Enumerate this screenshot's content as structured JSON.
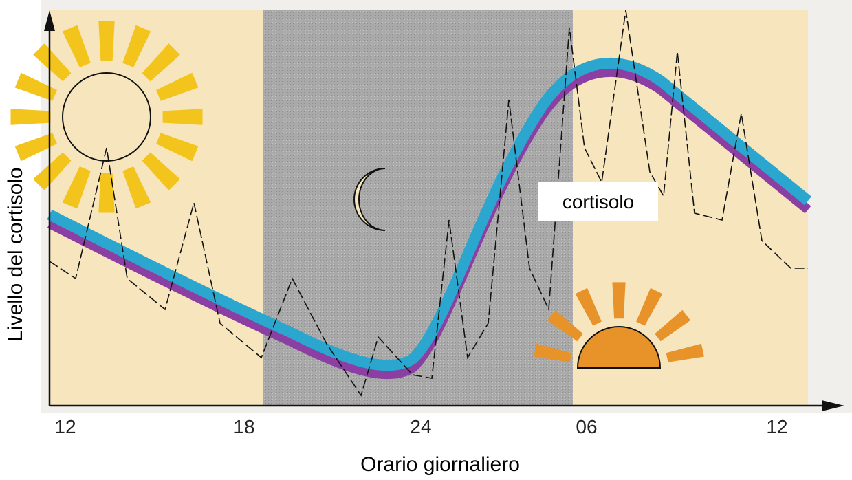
{
  "axis": {
    "y_title": "Livello del cortisolo",
    "x_title": "Orario giornaliero",
    "ticks": [
      "12",
      "18",
      "24",
      "06",
      "12"
    ]
  },
  "label": "cortisolo"
}
